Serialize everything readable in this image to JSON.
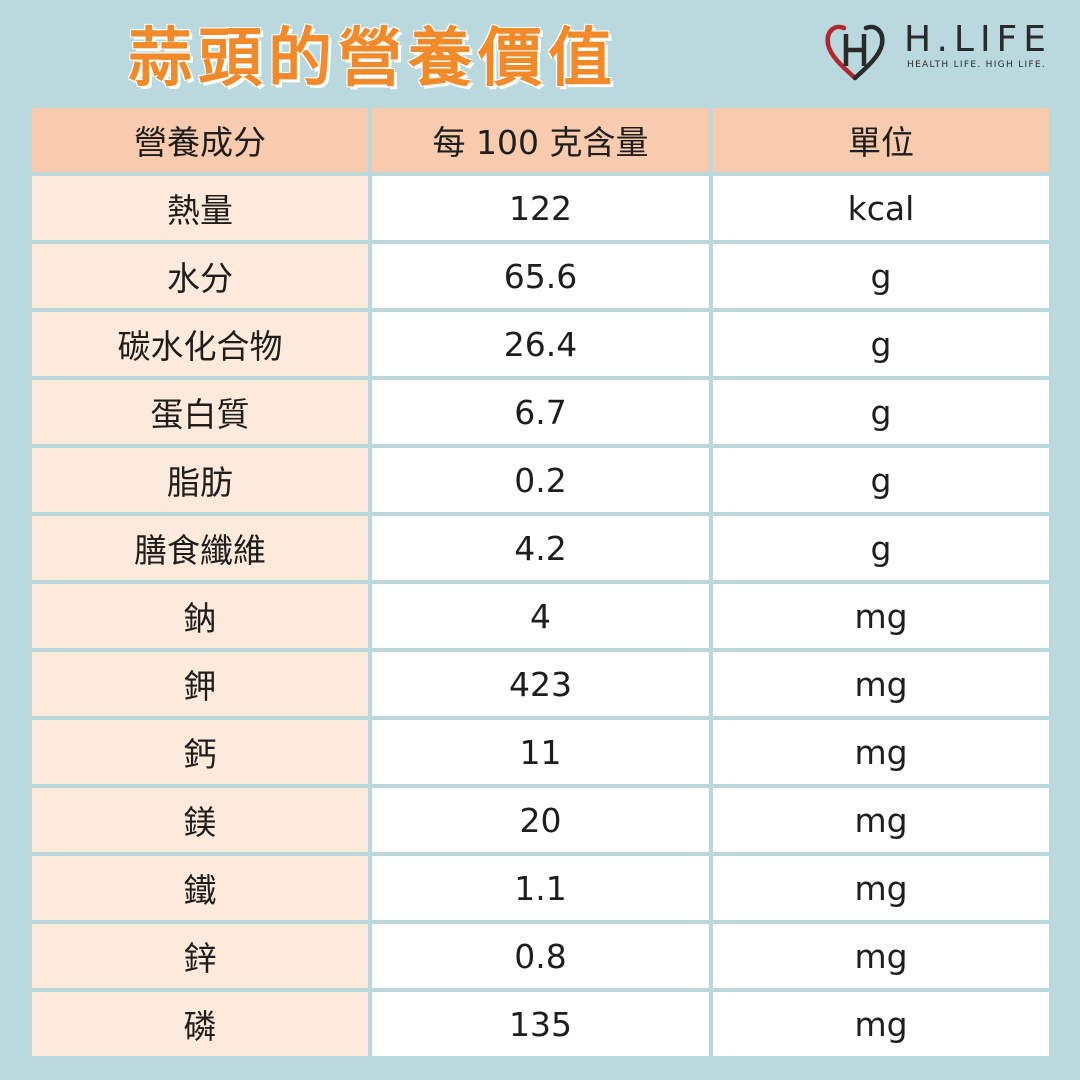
{
  "title": "蒜頭的營養價值",
  "logo": {
    "name": "H.LIFE",
    "tagline": "HEALTH LIFE. HIGH LIFE."
  },
  "colors": {
    "background": "#b9d9df",
    "title": "#f38a2a",
    "header_fill": "#f8cbae",
    "name_fill": "#feeadb"
  },
  "table": {
    "headers": [
      "營養成分",
      "每 100 克含量",
      "單位"
    ],
    "rows": [
      [
        "熱量",
        "122",
        "kcal"
      ],
      [
        "水分",
        "65.6",
        "g"
      ],
      [
        "碳水化合物",
        "26.4",
        "g"
      ],
      [
        "蛋白質",
        "6.7",
        "g"
      ],
      [
        "脂肪",
        "0.2",
        "g"
      ],
      [
        "膳食纖維",
        "4.2",
        "g"
      ],
      [
        "鈉",
        "4",
        "mg"
      ],
      [
        "鉀",
        "423",
        "mg"
      ],
      [
        "鈣",
        "11",
        "mg"
      ],
      [
        "鎂",
        "20",
        "mg"
      ],
      [
        "鐵",
        "1.1",
        "mg"
      ],
      [
        "鋅",
        "0.8",
        "mg"
      ],
      [
        "磷",
        "135",
        "mg"
      ]
    ]
  }
}
